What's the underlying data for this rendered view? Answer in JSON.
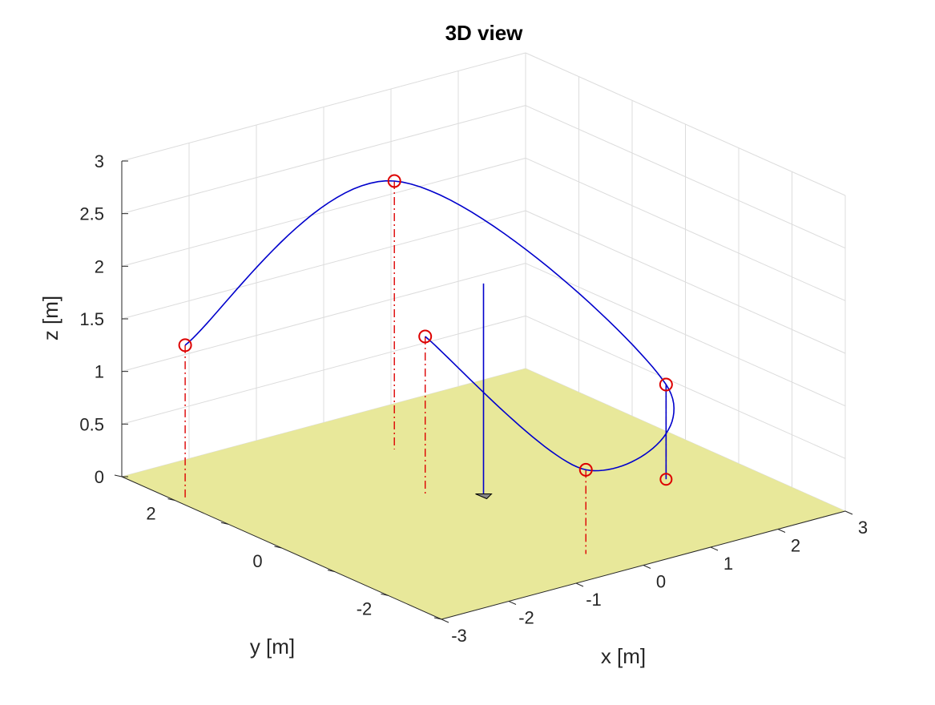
{
  "chart_data": {
    "type": "line3d",
    "title": "3D view",
    "xlabel": "x [m]",
    "ylabel": "y [m]",
    "zlabel": "z [m]",
    "xlim": [
      -3,
      3
    ],
    "ylim": [
      -3,
      3
    ],
    "zlim": [
      0,
      3
    ],
    "xticks": [
      -3,
      -2,
      -1,
      0,
      1,
      2,
      3
    ],
    "yticks": [
      -2,
      0,
      2
    ],
    "zticks": [
      0,
      0.5,
      1,
      1.5,
      2,
      2.5,
      3
    ],
    "grid": true,
    "ground_color": "#e8e89a",
    "path_color": "#0000cc",
    "waypoint_color": "#dd0000",
    "waypoints": [
      {
        "x": -2.85,
        "y": 2.0,
        "z": 1.45
      },
      {
        "x": 0.1,
        "y": 1.8,
        "z": 2.55
      },
      {
        "x": 2.0,
        "y": -0.9,
        "z": 0.9
      },
      {
        "x": -0.3,
        "y": -2.3,
        "z": 0.8
      },
      {
        "x": -0.55,
        "y": 0.4,
        "z": 1.5
      }
    ],
    "drone": {
      "x": 0.0,
      "y": 0.0,
      "z": 0.0,
      "stem_top_z": 2.0
    },
    "final_waypoint": {
      "x": 2.0,
      "y": -0.9,
      "z": 0.0
    }
  }
}
